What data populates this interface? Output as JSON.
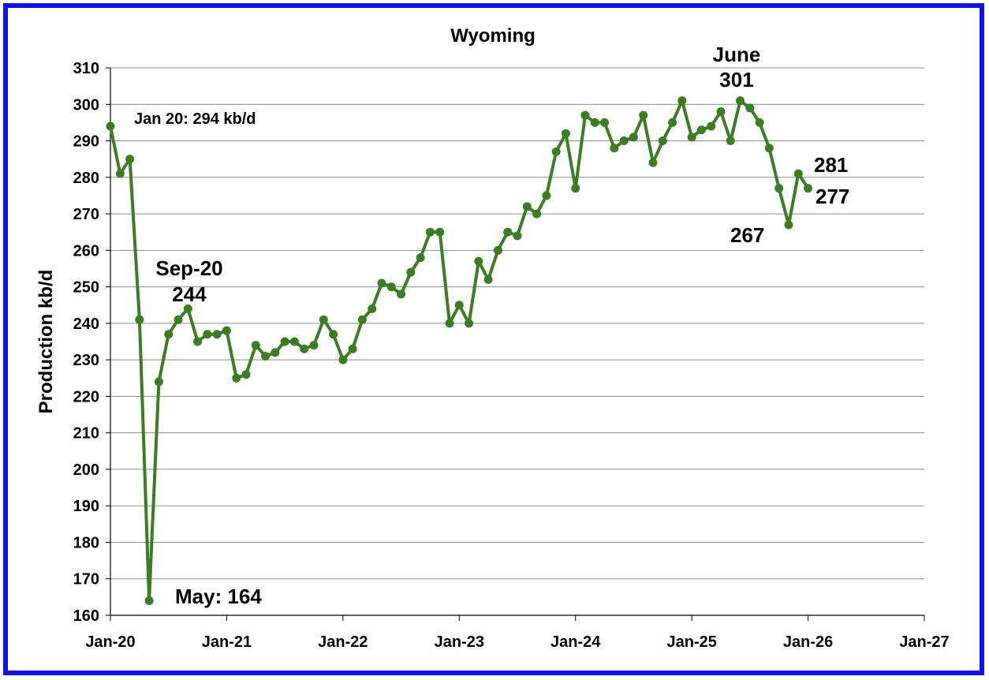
{
  "chart_data": {
    "type": "line",
    "title": "Wyoming",
    "xlabel": "",
    "ylabel": "Production kb/d",
    "ylim": [
      160,
      310
    ],
    "y_ticks": [
      160,
      170,
      180,
      190,
      200,
      210,
      220,
      230,
      240,
      250,
      260,
      270,
      280,
      290,
      300,
      310
    ],
    "x_ticks": [
      "Jan-20",
      "Jan-21",
      "Jan-22",
      "Jan-23",
      "Jan-24",
      "Jan-25",
      "Jan-26",
      "Jan-27"
    ],
    "x_start": "Jan-20",
    "grid": "horizontal",
    "color": "#3a7d22",
    "series": [
      {
        "values": [
          294,
          281,
          285,
          241,
          164,
          224,
          237,
          241,
          244,
          235,
          237,
          237,
          238,
          225,
          226,
          234,
          231,
          232,
          235,
          235,
          233,
          234,
          241,
          237,
          230,
          233,
          241,
          244,
          251,
          250,
          248,
          254,
          258,
          265,
          265,
          240,
          245,
          240,
          257,
          252,
          260,
          265,
          264,
          272,
          270,
          275,
          287,
          292,
          277,
          297,
          295,
          295,
          288,
          290,
          291,
          297,
          284,
          290,
          295,
          301,
          291,
          293,
          294,
          298,
          290,
          301,
          299,
          295,
          288,
          277,
          267,
          281,
          277
        ]
      }
    ],
    "annotations": [
      {
        "text": "Jan 20: 294 kb/d",
        "style": "small"
      },
      {
        "text": "Sep-20",
        "style": "big"
      },
      {
        "text": "244",
        "style": "big"
      },
      {
        "text": "May: 164",
        "style": "big"
      },
      {
        "text": "June",
        "style": "big"
      },
      {
        "text": "301",
        "style": "big"
      },
      {
        "text": "281",
        "style": "big"
      },
      {
        "text": "277",
        "style": "big"
      },
      {
        "text": "267",
        "style": "big"
      }
    ]
  }
}
